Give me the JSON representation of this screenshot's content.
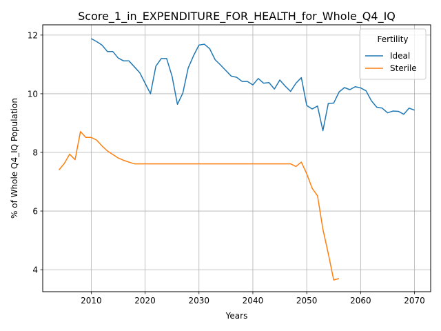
{
  "chart_data": {
    "type": "line",
    "title": "Score_1_in_EXPENDITURE_FOR_HEALTH_for_Whole_Q4_IQ",
    "xlabel": "Years",
    "ylabel": "% of Whole Q4_IQ Population",
    "xlim": [
      2001,
      2073
    ],
    "ylim": [
      3.25,
      12.35
    ],
    "xticks": [
      2010,
      2020,
      2030,
      2040,
      2050,
      2060,
      2070
    ],
    "yticks": [
      4,
      6,
      8,
      10,
      12
    ],
    "grid": true,
    "legend": {
      "title": "Fertility",
      "position": "top-right"
    },
    "series": [
      {
        "name": "Ideal",
        "color": "#1f77b4",
        "x": [
          2010,
          2011,
          2012,
          2013,
          2014,
          2015,
          2016,
          2017,
          2018,
          2019,
          2020,
          2021,
          2022,
          2023,
          2024,
          2025,
          2026,
          2027,
          2028,
          2029,
          2030,
          2031,
          2032,
          2033,
          2034,
          2035,
          2036,
          2037,
          2038,
          2039,
          2040,
          2041,
          2042,
          2043,
          2044,
          2045,
          2046,
          2047,
          2048,
          2049,
          2050,
          2051,
          2052,
          2053,
          2054,
          2055,
          2056,
          2057,
          2058,
          2059,
          2060,
          2061,
          2062,
          2063,
          2064,
          2065,
          2066,
          2067,
          2068,
          2069,
          2070
        ],
        "y": [
          11.88,
          11.78,
          11.66,
          11.44,
          11.44,
          11.22,
          11.12,
          11.12,
          10.92,
          10.72,
          10.36,
          10.0,
          10.94,
          11.2,
          11.2,
          10.6,
          9.64,
          10.02,
          10.88,
          11.3,
          11.66,
          11.69,
          11.53,
          11.16,
          10.98,
          10.79,
          10.6,
          10.56,
          10.42,
          10.42,
          10.3,
          10.52,
          10.36,
          10.38,
          10.16,
          10.47,
          10.26,
          10.08,
          10.36,
          10.55,
          9.6,
          9.48,
          9.58,
          8.74,
          9.67,
          9.68,
          10.06,
          10.21,
          10.14,
          10.24,
          10.2,
          10.1,
          9.76,
          9.54,
          9.51,
          9.35,
          9.41,
          9.4,
          9.3,
          9.51,
          9.44
        ]
      },
      {
        "name": "Sterile",
        "color": "#ff7f0e",
        "x": [
          2004,
          2005,
          2006,
          2007,
          2008,
          2009,
          2010,
          2011,
          2012,
          2013,
          2014,
          2015,
          2016,
          2017,
          2018,
          2019,
          2020,
          2021,
          2022,
          2023,
          2024,
          2025,
          2026,
          2027,
          2028,
          2029,
          2030,
          2031,
          2032,
          2033,
          2034,
          2035,
          2036,
          2037,
          2038,
          2039,
          2040,
          2041,
          2042,
          2043,
          2044,
          2045,
          2046,
          2047,
          2048,
          2049,
          2050,
          2051,
          2052,
          2053,
          2054,
          2055,
          2056
        ],
        "y": [
          7.4,
          7.62,
          7.94,
          7.75,
          8.71,
          8.51,
          8.51,
          8.42,
          8.22,
          8.05,
          7.93,
          7.81,
          7.73,
          7.67,
          7.61,
          7.61,
          7.61,
          7.61,
          7.61,
          7.61,
          7.61,
          7.61,
          7.61,
          7.61,
          7.61,
          7.61,
          7.61,
          7.61,
          7.61,
          7.61,
          7.61,
          7.61,
          7.61,
          7.61,
          7.61,
          7.61,
          7.61,
          7.61,
          7.61,
          7.61,
          7.61,
          7.61,
          7.61,
          7.61,
          7.52,
          7.67,
          7.27,
          6.78,
          6.52,
          5.38,
          4.55,
          3.65,
          3.7
        ]
      }
    ]
  }
}
